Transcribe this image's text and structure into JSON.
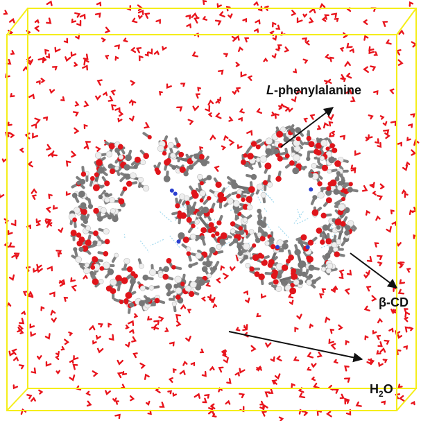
{
  "labels": {
    "phenylalanine": {
      "prefix": "L",
      "text": "-phenylalanine"
    },
    "cyclodextrin": {
      "text": "β-CD"
    },
    "water": {
      "base": "H",
      "sub": "2",
      "tail": "O"
    }
  }
}
